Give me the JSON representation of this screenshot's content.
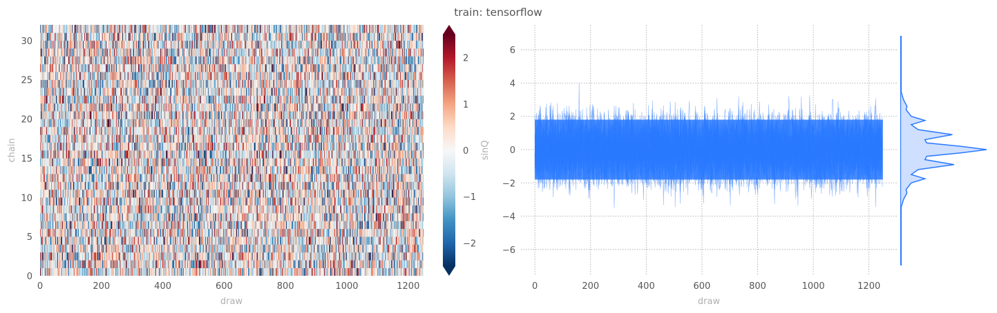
{
  "figure_title": "train: tensorflow",
  "colors": {
    "trace": "#2979ff",
    "kde_fill": "#c9dbff",
    "grid": "#a0a0a0",
    "text": "#555555",
    "label": "#b0b0b0",
    "cmap": [
      "#67001f",
      "#b2182b",
      "#d6604d",
      "#f4a582",
      "#fddbc7",
      "#f7f7f7",
      "#d1e5f0",
      "#92c5de",
      "#4393c3",
      "#2166ac",
      "#053061"
    ]
  },
  "chart_data": [
    {
      "type": "heatmap",
      "title": "",
      "xlabel": "draw",
      "ylabel": "chain",
      "xlim": [
        0,
        1250
      ],
      "ylim": [
        0,
        32
      ],
      "x_ticks": [
        "0",
        "200",
        "400",
        "600",
        "800",
        "1000",
        "1200"
      ],
      "y_ticks": [
        "0",
        "5",
        "10",
        "15",
        "20",
        "25",
        "30"
      ],
      "n_chains": 32,
      "n_draws": 1250,
      "value_distribution": "approximately symmetric around 0, mostly within [-2.5, 2.5]",
      "colorbar": {
        "label": "sinQ",
        "colormap": "RdBu_r",
        "range": [
          -2.5,
          2.5
        ],
        "ticks": [
          "−2",
          "−1",
          "0",
          "1",
          "2"
        ],
        "extend": "both"
      }
    },
    {
      "type": "line",
      "title": "",
      "xlabel": "draw",
      "ylabel": "",
      "xlim": [
        -50,
        1300
      ],
      "ylim": [
        -7.5,
        7.5
      ],
      "x_ticks": [
        "0",
        "200",
        "400",
        "600",
        "800",
        "1000",
        "1200"
      ],
      "y_ticks": [
        "−6",
        "−4",
        "−2",
        "0",
        "2",
        "4",
        "6"
      ],
      "grid": true,
      "n_traces": 32,
      "n_draws": 1250,
      "dense_band": [
        -1.8,
        1.8
      ],
      "outer_band": [
        -2.8,
        2.8
      ],
      "extreme_range": [
        -4.6,
        4.5
      ]
    },
    {
      "type": "area",
      "title": "",
      "description_of_series": "kde of values (sideways density)",
      "y": [
        -3.5,
        -3.0,
        -2.6,
        -2.4,
        -2.0,
        -1.75,
        -1.5,
        -1.2,
        -0.9,
        -0.6,
        -0.4,
        -0.2,
        0.0,
        0.2,
        0.4,
        0.6,
        0.9,
        1.2,
        1.5,
        1.75,
        2.0,
        2.4,
        2.6,
        3.0,
        3.5
      ],
      "density": [
        0.0,
        0.03,
        0.07,
        0.06,
        0.12,
        0.28,
        0.12,
        0.2,
        0.62,
        0.28,
        0.3,
        0.7,
        1.0,
        0.7,
        0.3,
        0.28,
        0.6,
        0.2,
        0.12,
        0.28,
        0.12,
        0.06,
        0.07,
        0.03,
        0.0
      ],
      "ylim": [
        -7,
        7
      ]
    }
  ]
}
